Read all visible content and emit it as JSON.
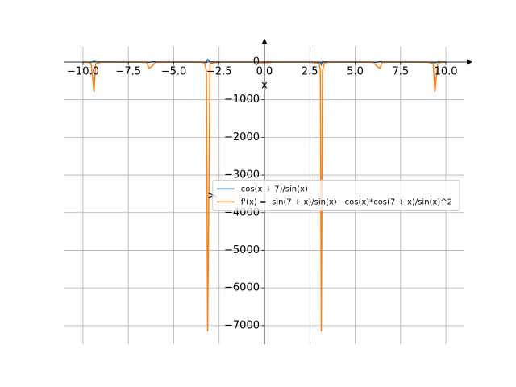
{
  "chart_data": {
    "type": "line",
    "xlabel": "x",
    "ylabel": "y",
    "x": [
      -10,
      -9.7,
      -9.55,
      -9.394,
      -9.3,
      -9,
      -8,
      -7,
      -6.5,
      -6.35,
      -6.2,
      -6,
      -5,
      -4,
      -3.5,
      -3.3,
      -3.2,
      -3.1313,
      -3,
      -2.5,
      -2,
      -1,
      -0.5,
      -0.2,
      0.2,
      0.5,
      1,
      2,
      2.5,
      3,
      3.08,
      3.1313,
      3.2,
      3.3,
      3.5,
      4,
      5,
      6,
      6.2,
      6.35,
      6.5,
      7,
      8,
      9,
      9.3,
      9.394,
      9.55,
      9.7,
      10
    ],
    "series": [
      {
        "name": "cos(x + 7)/sin(x)",
        "color": "#1f77b4",
        "values": [
          -1.82,
          -3.33,
          -6.65,
          23.8,
          5.35,
          1.01,
          -0.55,
          -1.52,
          -4.08,
          -11.92,
          8.38,
          1.94,
          -0.43,
          -1.31,
          -2.67,
          -5.38,
          -13.54,
          72.8,
          4.63,
          0.35,
          -0.31,
          -1.14,
          -2.04,
          -4.38,
          3.06,
          0.72,
          -0.17,
          -1.0,
          -1.67,
          -5.95,
          -12.87,
          -74.1,
          12.23,
          4.06,
          1.36,
          -0.01,
          -0.88,
          -3.25,
          -9.7,
          10.61,
          2.77,
          0.21,
          -0.77,
          -2.32,
          -6.66,
          -25.1,
          5.33,
          2.01,
          0.51
        ]
      },
      {
        "name": "f'(x) = -sin(7 + x)/sin(x) - cos(x)*cos(7 + x)/sin(x)^2",
        "color": "#ff7f0e",
        "values": [
          -2.55,
          -10.2,
          -48.3,
          -795,
          -48.6,
          -4.44,
          -0.77,
          -1.75,
          -16.3,
          -169,
          -109,
          -9.66,
          -0.82,
          -1.32,
          -6.13,
          -30.3,
          -221,
          -7150,
          -37.9,
          -2.1,
          -0.91,
          -1.06,
          -3.28,
          -19.1,
          -19.1,
          -3.28,
          -1.06,
          -0.91,
          -2.1,
          -37.9,
          -199,
          -7150,
          -221,
          -30.3,
          -6.13,
          -1.32,
          -0.82,
          -9.66,
          -109,
          -169,
          -16.3,
          -1.75,
          -0.77,
          -4.44,
          -48.6,
          -795,
          -48.3,
          -10.2,
          -2.55
        ]
      }
    ],
    "xlim": [
      -11.02,
      11.02
    ],
    "ylim": [
      -7500,
      415
    ],
    "xticks": [
      {
        "value": -10,
        "label": "−10.0"
      },
      {
        "value": -7.5,
        "label": "−7.5"
      },
      {
        "value": -5,
        "label": "−5.0"
      },
      {
        "value": -2.5,
        "label": "−2.5"
      },
      {
        "value": 0,
        "label": "0.0"
      },
      {
        "value": 2.5,
        "label": "2.5"
      },
      {
        "value": 5,
        "label": "5.0"
      },
      {
        "value": 7.5,
        "label": "7.5"
      },
      {
        "value": 10,
        "label": "10.0"
      }
    ],
    "yticks": [
      0,
      {
        "value": -1000,
        "label": "−1000"
      },
      {
        "value": -2000,
        "label": "−2000"
      },
      {
        "value": -3000,
        "label": "−3000"
      },
      {
        "value": -4000,
        "label": "−4000"
      },
      {
        "value": -5000,
        "label": "−5000"
      },
      {
        "value": -6000,
        "label": "−6000"
      },
      {
        "value": -7000,
        "label": "−7000"
      }
    ],
    "grid": true,
    "legend_loc": "center right"
  }
}
